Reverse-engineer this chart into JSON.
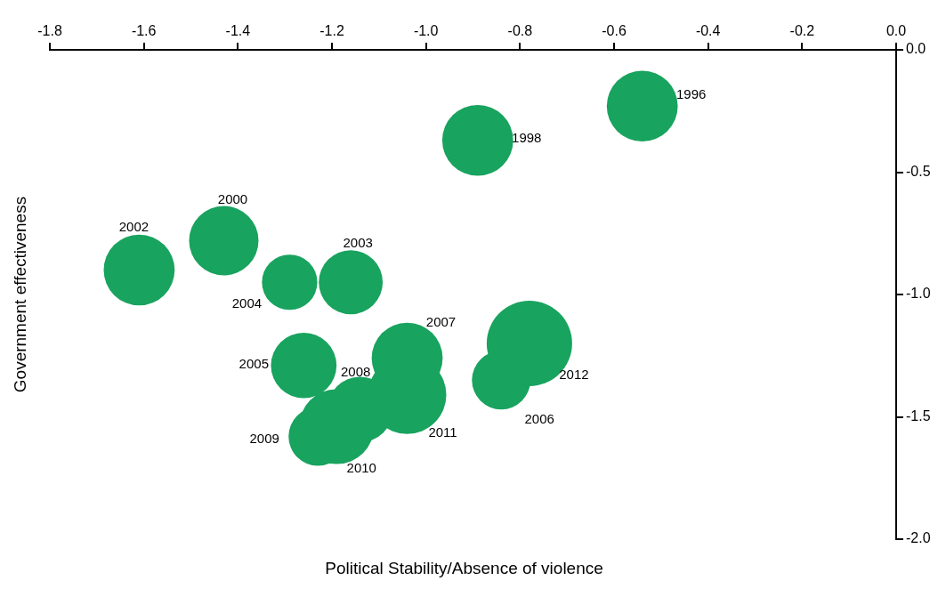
{
  "chart_data": {
    "type": "bubble",
    "xlabel": "Political Stability/Absence of violence",
    "ylabel": "Government effectiveness",
    "x": [
      -0.54,
      -0.89,
      -1.43,
      -1.61,
      -1.16,
      -1.29,
      -1.26,
      -0.84,
      -1.04,
      -1.14,
      -1.23,
      -1.19,
      -1.04,
      -0.78
    ],
    "series": [
      {
        "color": "#18a35e",
        "values": [
          -0.23,
          -0.37,
          -0.78,
          -0.9,
          -0.95,
          -0.95,
          -1.29,
          -1.35,
          -1.26,
          -1.47,
          -1.58,
          -1.54,
          -1.41,
          -1.2
        ],
        "sizes": [
          0.69,
          0.69,
          0.66,
          0.69,
          0.56,
          0.42,
          0.59,
          0.47,
          0.69,
          0.59,
          0.47,
          0.77,
          0.84,
          1
        ]
      }
    ],
    "xlim": [
      -1.8,
      0
    ],
    "xticks": [
      -1.8,
      -1.6,
      -1.4,
      -1.2,
      {
        "value": -1,
        "label": "-1.0"
      },
      -0.8,
      -0.6,
      -0.4,
      -0.2,
      {
        "value": 0,
        "label": "0.0"
      }
    ],
    "ylim": [
      -2,
      0
    ],
    "yticks": [
      {
        "value": 0,
        "label": "0.0"
      },
      -0.5,
      {
        "value": -1,
        "label": "-1.0"
      },
      -1.5,
      {
        "value": -2,
        "label": "-2.0"
      }
    ],
    "grid": false,
    "legend": false,
    "annotations": [
      {
        "text": "1996",
        "x": -0.54,
        "y": -0.23
      },
      {
        "text": "1998",
        "x": -0.89,
        "y": -0.37
      },
      {
        "text": "2000",
        "x": -1.43,
        "y": -0.78
      },
      {
        "text": "2002",
        "x": -1.61,
        "y": -0.9
      },
      {
        "text": "2003",
        "x": -1.16,
        "y": -0.95
      },
      {
        "text": "2004",
        "x": -1.29,
        "y": -0.95
      },
      {
        "text": "2005",
        "x": -1.26,
        "y": -1.29
      },
      {
        "text": "2006",
        "x": -0.84,
        "y": -1.35
      },
      {
        "text": "2007",
        "x": -1.04,
        "y": -1.26
      },
      {
        "text": "2008",
        "x": -1.14,
        "y": -1.47
      },
      {
        "text": "2009",
        "x": -1.23,
        "y": -1.58
      },
      {
        "text": "2010",
        "x": -1.19,
        "y": -1.54
      },
      {
        "text": "2011",
        "x": -1.04,
        "y": -1.41
      },
      {
        "text": "2012",
        "x": -0.78,
        "y": -1.2
      }
    ]
  }
}
